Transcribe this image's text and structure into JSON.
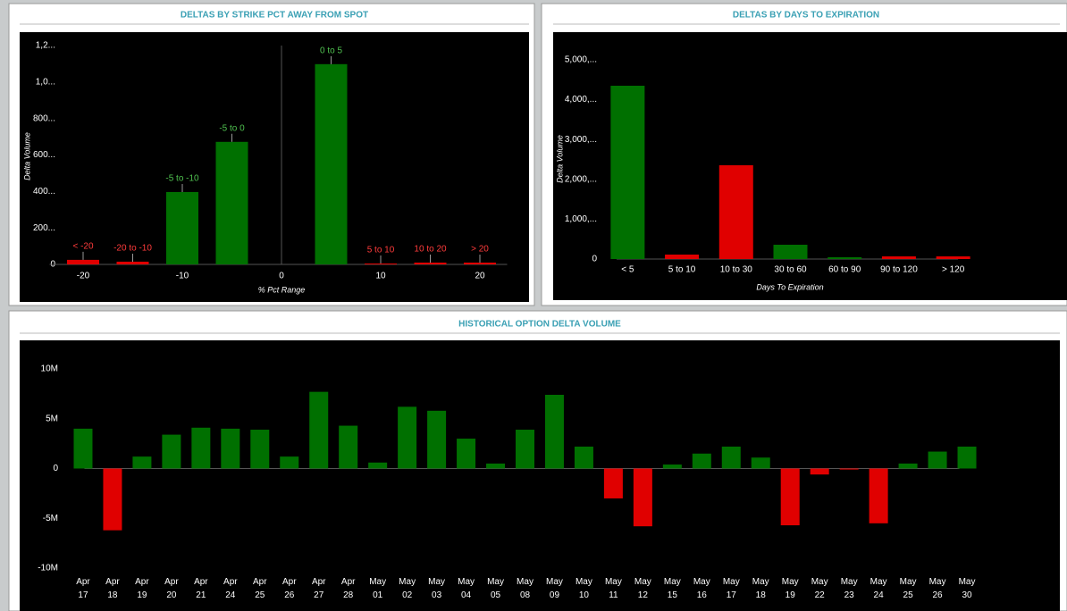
{
  "chart_data": [
    {
      "type": "bar",
      "title": "DELTAS BY STRIKE PCT AWAY FROM SPOT",
      "x_label": "% Pct Range",
      "y_label": "Delta Volume",
      "x": [
        -20,
        -15,
        -10,
        -5,
        5,
        10,
        15,
        20
      ],
      "labels": [
        "< -20",
        "-20 to -10",
        "-5 to -10",
        "-5 to 0",
        "0 to 5",
        "5 to 10",
        "10 to 20",
        "> 20"
      ],
      "values": [
        25,
        15,
        397,
        672,
        1098,
        5,
        10,
        10
      ],
      "colors": [
        "#e00000",
        "#e00000",
        "#007000",
        "#007000",
        "#007000",
        "#e00000",
        "#e00000",
        "#e00000"
      ],
      "xlim": [
        -25,
        25
      ],
      "xticks": [
        -20,
        -10,
        0,
        10,
        20
      ],
      "ylim": [
        0,
        1200
      ],
      "yticks": [
        0,
        {
          "value": 200,
          "label": "200..."
        },
        {
          "value": 400,
          "label": "400..."
        },
        {
          "value": 600,
          "label": "600..."
        },
        {
          "value": 800,
          "label": "800..."
        },
        {
          "value": 1000,
          "label": "1,0..."
        },
        {
          "value": 1200,
          "label": "1,2..."
        }
      ]
    },
    {
      "type": "bar",
      "title": "DELTAS BY DAYS TO EXPIRATION",
      "x_label": "Days To Expiration",
      "y_label": "Delta Volume",
      "categories": [
        "< 5",
        "5 to 10",
        "10 to 30",
        "30 to 60",
        "60 to 90",
        "90 to 120",
        "> 120"
      ],
      "values": [
        4350,
        112,
        2354,
        359,
        45,
        67,
        67
      ],
      "colors": [
        "#007000",
        "#e00000",
        "#e00000",
        "#007000",
        "#007000",
        "#e00000",
        "#e00000"
      ],
      "ylim": [
        0,
        5000
      ],
      "yticks": [
        0,
        {
          "value": 1000,
          "label": "1,000,..."
        },
        {
          "value": 2000,
          "label": "2,000,..."
        },
        {
          "value": 3000,
          "label": "3,000,..."
        },
        {
          "value": 4000,
          "label": "4,000,..."
        },
        {
          "value": 5000,
          "label": "5,000,..."
        }
      ]
    },
    {
      "type": "bar",
      "title": "HISTORICAL OPTION DELTA VOLUME",
      "categories": [
        "Apr 17",
        "Apr 18",
        "Apr 19",
        "Apr 20",
        "Apr 21",
        "Apr 24",
        "Apr 25",
        "Apr 26",
        "Apr 27",
        "Apr 28",
        "May 01",
        "May 02",
        "May 03",
        "May 04",
        "May 05",
        "May 08",
        "May 09",
        "May 10",
        "May 11",
        "May 12",
        "May 15",
        "May 16",
        "May 17",
        "May 18",
        "May 19",
        "May 22",
        "May 23",
        "May 24",
        "May 25",
        "May 26",
        "May 30"
      ],
      "values": [
        4000000,
        -6200000,
        1200000,
        3400000,
        4100000,
        4000000,
        3900000,
        1200000,
        7700000,
        4300000,
        600000,
        6200000,
        5800000,
        3000000,
        500000,
        3900000,
        7400000,
        2200000,
        -3000000,
        -5800000,
        400000,
        1500000,
        2200000,
        1100000,
        -5700000,
        -600000,
        -100000,
        -5500000,
        500000,
        1700000,
        2200000
      ],
      "positive_color": "#007000",
      "negative_color": "#e00000",
      "ylim": [
        -10000000,
        10000000
      ],
      "yticks": [
        {
          "value": -10000000,
          "label": "-10M"
        },
        {
          "value": -5000000,
          "label": "-5M"
        },
        0,
        {
          "value": 5000000,
          "label": "5M"
        },
        {
          "value": 10000000,
          "label": "10M"
        }
      ]
    }
  ]
}
